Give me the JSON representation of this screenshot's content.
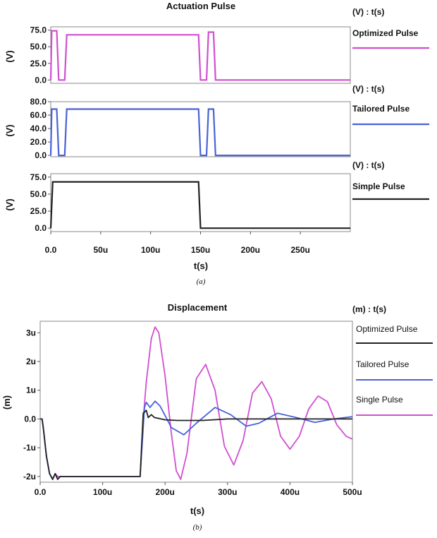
{
  "chart_data": [
    {
      "type": "line",
      "title": "Actuation Pulse",
      "caption": "(a)",
      "xlabel": "t(s)",
      "x_ticks": [
        "0.0",
        "50u",
        "100u",
        "150u",
        "200u",
        "250u"
      ],
      "xlim": [
        0,
        0.0003
      ],
      "subplots": [
        {
          "unit_label": "(V) : t(s)",
          "ylabel": "(V)",
          "ylim": [
            -5,
            80
          ],
          "y_ticks": [
            "75.0",
            "50.0",
            "25.0",
            "0.0"
          ],
          "y_tick_values": [
            75,
            50,
            25,
            0
          ],
          "series": [
            {
              "name": "Optimized Pulse",
              "color": "#d04fd0",
              "points": [
                [
                  0,
                  0
                ],
                [
                  1e-06,
                  74
                ],
                [
                  6e-06,
                  74
                ],
                [
                  8e-06,
                  0
                ],
                [
                  1.4e-05,
                  0
                ],
                [
                  1.6e-05,
                  68
                ],
                [
                  0.000148,
                  68
                ],
                [
                  0.00015,
                  0
                ],
                [
                  0.000156,
                  0
                ],
                [
                  0.000158,
                  72
                ],
                [
                  0.000163,
                  72
                ],
                [
                  0.000165,
                  0
                ],
                [
                  0.0003,
                  0
                ]
              ]
            }
          ]
        },
        {
          "unit_label": "(V) : t(s)",
          "ylabel": "(V)",
          "ylim": [
            -2,
            80
          ],
          "y_ticks": [
            "80.0",
            "60.0",
            "40.0",
            "20.0",
            "0.0"
          ],
          "y_tick_values": [
            80,
            60,
            40,
            20,
            0
          ],
          "series": [
            {
              "name": "Tailored Pulse",
              "color": "#4a62d8",
              "points": [
                [
                  0,
                  0
                ],
                [
                  1e-06,
                  69
                ],
                [
                  6e-06,
                  69
                ],
                [
                  8e-06,
                  0
                ],
                [
                  1.4e-05,
                  0
                ],
                [
                  1.6e-05,
                  69
                ],
                [
                  0.000148,
                  69
                ],
                [
                  0.00015,
                  0
                ],
                [
                  0.000156,
                  0
                ],
                [
                  0.000158,
                  69
                ],
                [
                  0.000163,
                  69
                ],
                [
                  0.000165,
                  0
                ],
                [
                  0.0003,
                  0
                ]
              ]
            }
          ]
        },
        {
          "unit_label": "(V) : t(s)",
          "ylabel": "(V)",
          "ylim": [
            -5,
            80
          ],
          "y_ticks": [
            "75.0",
            "50.0",
            "25.0",
            "0.0"
          ],
          "y_tick_values": [
            75,
            50,
            25,
            0
          ],
          "series": [
            {
              "name": "Simple Pulse",
              "color": "#222222",
              "points": [
                [
                  0,
                  0
                ],
                [
                  2e-06,
                  68
                ],
                [
                  0.000148,
                  68
                ],
                [
                  0.00015,
                  0
                ],
                [
                  0.0003,
                  0
                ]
              ]
            }
          ]
        }
      ]
    },
    {
      "type": "line",
      "title": "Displacement",
      "caption": "(b)",
      "unit_label": "(m) : t(s)",
      "xlabel": "t(s)",
      "ylabel": "(m)",
      "xlim": [
        0,
        0.0005
      ],
      "x_ticks": [
        "0.0",
        "100u",
        "200u",
        "300u",
        "400u",
        "500u"
      ],
      "ylim": [
        -2.2e-06,
        3.4e-06
      ],
      "y_ticks": [
        "3u",
        "2u",
        "1u",
        "0.0",
        "-1u",
        "-2u"
      ],
      "y_tick_values": [
        3e-06,
        2e-06,
        1e-06,
        0,
        -1e-06,
        -2e-06
      ],
      "series": [
        {
          "name": "Optimized Pulse",
          "color": "#222222",
          "points": [
            [
              0,
              0
            ],
            [
              3e-06,
              0
            ],
            [
              5e-06,
              -3e-07
            ],
            [
              1e-05,
              -1.3e-06
            ],
            [
              1.5e-05,
              -1.9e-06
            ],
            [
              2e-05,
              -2.1e-06
            ],
            [
              2.4e-05,
              -1.9e-06
            ],
            [
              2.8e-05,
              -2.1e-06
            ],
            [
              3.2e-05,
              -2e-06
            ],
            [
              0.00016,
              -2e-06
            ],
            [
              0.000165,
              2e-07
            ],
            [
              0.00017,
              3e-07
            ],
            [
              0.000173,
              5e-08
            ],
            [
              0.000178,
              1.5e-07
            ],
            [
              0.000183,
              5e-08
            ],
            [
              0.00019,
              2e-08
            ],
            [
              0.0002,
              -3e-08
            ],
            [
              0.00022,
              -5e-08
            ],
            [
              0.00026,
              -5e-08
            ],
            [
              0.0003,
              0
            ],
            [
              0.00035,
              0
            ],
            [
              0.0004,
              0
            ],
            [
              0.00045,
              0
            ],
            [
              0.0005,
              0
            ]
          ]
        },
        {
          "name": "Tailored Pulse",
          "color": "#4a62d8",
          "points": [
            [
              0,
              0
            ],
            [
              3e-06,
              0
            ],
            [
              5e-06,
              -3e-07
            ],
            [
              1e-05,
              -1.3e-06
            ],
            [
              1.5e-05,
              -1.9e-06
            ],
            [
              2e-05,
              -2.1e-06
            ],
            [
              2.4e-05,
              -1.9e-06
            ],
            [
              2.8e-05,
              -2.1e-06
            ],
            [
              3.2e-05,
              -2e-06
            ],
            [
              0.00016,
              -2e-06
            ],
            [
              0.000167,
              4e-07
            ],
            [
              0.00017,
              5.8e-07
            ],
            [
              0.000176,
              4e-07
            ],
            [
              0.000184,
              6.2e-07
            ],
            [
              0.000192,
              4.5e-07
            ],
            [
              0.00021,
              -3e-07
            ],
            [
              0.00023,
              -5.5e-07
            ],
            [
              0.00025,
              -1.5e-07
            ],
            [
              0.00028,
              4e-07
            ],
            [
              0.000305,
              1.5e-07
            ],
            [
              0.00033,
              -2.5e-07
            ],
            [
              0.00035,
              -1.5e-07
            ],
            [
              0.00038,
              2e-07
            ],
            [
              0.00041,
              5e-08
            ],
            [
              0.00044,
              -1.2e-07
            ],
            [
              0.00047,
              0
            ],
            [
              0.0005,
              8e-08
            ]
          ]
        },
        {
          "name": "Single Pulse",
          "color": "#d04fd0",
          "points": [
            [
              0,
              0
            ],
            [
              3e-06,
              0
            ],
            [
              5e-06,
              -3e-07
            ],
            [
              1e-05,
              -1.3e-06
            ],
            [
              1.5e-05,
              -1.9e-06
            ],
            [
              2e-05,
              -2.1e-06
            ],
            [
              2.4e-05,
              -1.9e-06
            ],
            [
              2.8e-05,
              -2e-06
            ],
            [
              3.2e-05,
              -2e-06
            ],
            [
              0.00016,
              -2e-06
            ],
            [
              0.000166,
              2.5e-07
            ],
            [
              0.00017,
              1.3e-06
            ],
            [
              0.000178,
              2.8e-06
            ],
            [
              0.000184,
              3.2e-06
            ],
            [
              0.00019,
              3e-06
            ],
            [
              0.0002,
              1.5e-06
            ],
            [
              0.00021,
              -5e-07
            ],
            [
              0.000218,
              -1.8e-06
            ],
            [
              0.000225,
              -2.1e-06
            ],
            [
              0.000235,
              -1.2e-06
            ],
            [
              0.00025,
              1.4e-06
            ],
            [
              0.000265,
              1.9e-06
            ],
            [
              0.00028,
              1e-06
            ],
            [
              0.000295,
              -9.5e-07
            ],
            [
              0.00031,
              -1.6e-06
            ],
            [
              0.000325,
              -7.5e-07
            ],
            [
              0.00034,
              9e-07
            ],
            [
              0.000355,
              1.3e-06
            ],
            [
              0.00037,
              7e-07
            ],
            [
              0.000385,
              -6e-07
            ],
            [
              0.0004,
              -1.05e-06
            ],
            [
              0.000415,
              -6e-07
            ],
            [
              0.00043,
              3.5e-07
            ],
            [
              0.000445,
              8e-07
            ],
            [
              0.00046,
              6e-07
            ],
            [
              0.000475,
              -2e-07
            ],
            [
              0.00049,
              -6e-07
            ],
            [
              0.0005,
              -7e-07
            ]
          ]
        }
      ]
    }
  ]
}
